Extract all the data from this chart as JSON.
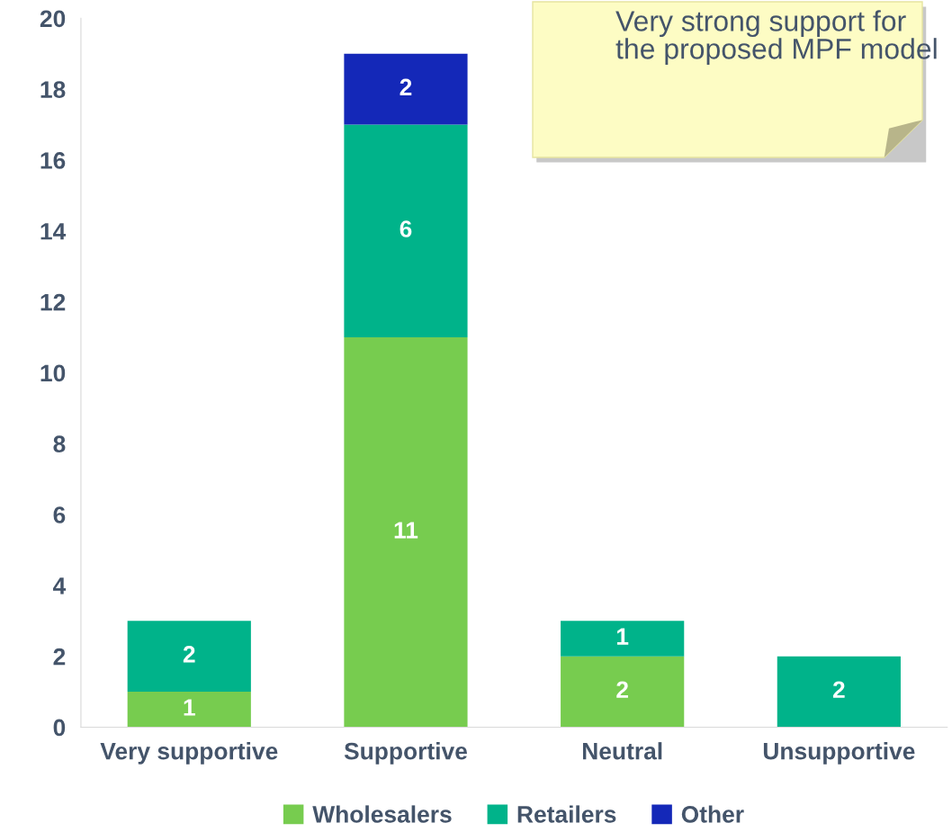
{
  "chart_data": {
    "type": "bar",
    "stacked": true,
    "categories": [
      "Very supportive",
      "Supportive",
      "Neutral",
      "Unsupportive"
    ],
    "series": [
      {
        "name": "Wholesalers",
        "color": "#77cc4f",
        "values": [
          1,
          11,
          2,
          0
        ],
        "value_labels": [
          "1",
          "11",
          "2",
          null
        ]
      },
      {
        "name": "Retailers",
        "color": "#00b38a",
        "values": [
          2,
          6,
          1,
          2
        ],
        "value_labels": [
          "2",
          "6",
          "1",
          "2"
        ]
      },
      {
        "name": "Other",
        "color": "#1428b8",
        "values": [
          0,
          2,
          0,
          0
        ],
        "value_labels": [
          null,
          "2",
          null,
          null
        ]
      }
    ],
    "ylim": [
      0,
      20
    ],
    "yticks": [
      0,
      2,
      4,
      6,
      8,
      10,
      12,
      14,
      16,
      18,
      20
    ],
    "grid": false,
    "legend": "bottom",
    "annotations": [
      "Very strong support for the proposed MPF model"
    ]
  }
}
